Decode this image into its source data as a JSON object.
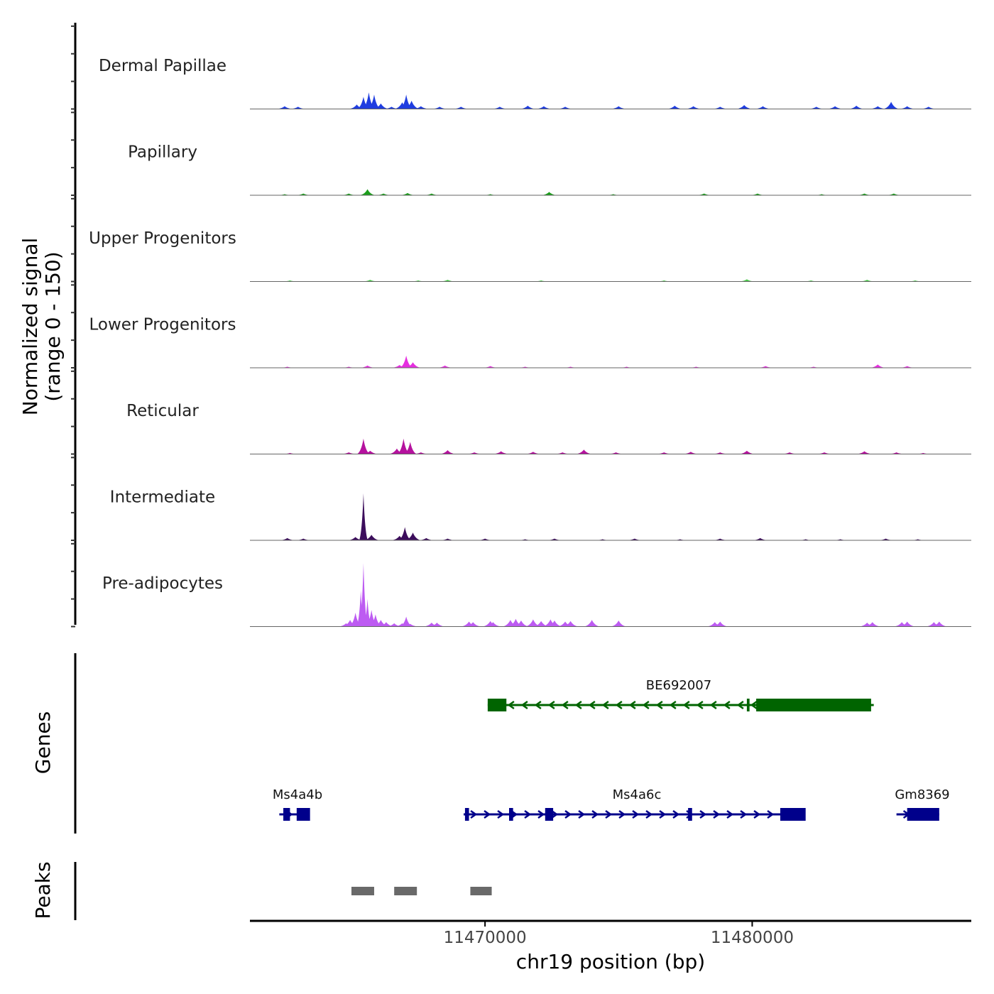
{
  "chart_data": {
    "type": "area",
    "title": "",
    "chromosome": "chr19",
    "xlabel": "chr19 position (bp)",
    "ylabel": "Normalized signal\n(range 0 - 150)",
    "xlim": [
      11461200,
      11488200
    ],
    "ylim": [
      0,
      150
    ],
    "x_ticks": [
      11470000,
      11480000
    ],
    "x_tick_labels": [
      "11470000",
      "11480000"
    ],
    "tracks": [
      {
        "name": "Dermal Papillae",
        "color": "#1f3de0",
        "peaks": [
          [
            11462500,
            5
          ],
          [
            11463000,
            4
          ],
          [
            11465200,
            8
          ],
          [
            11465450,
            22
          ],
          [
            11465650,
            30
          ],
          [
            11465850,
            26
          ],
          [
            11466100,
            10
          ],
          [
            11466500,
            4
          ],
          [
            11466900,
            12
          ],
          [
            11467050,
            26
          ],
          [
            11467250,
            15
          ],
          [
            11467600,
            5
          ],
          [
            11468300,
            4
          ],
          [
            11469100,
            4
          ],
          [
            11470550,
            4
          ],
          [
            11471600,
            6
          ],
          [
            11472200,
            5
          ],
          [
            11473000,
            4
          ],
          [
            11475000,
            5
          ],
          [
            11477100,
            6
          ],
          [
            11477800,
            5
          ],
          [
            11478800,
            4
          ],
          [
            11479700,
            7
          ],
          [
            11480400,
            5
          ],
          [
            11482400,
            4
          ],
          [
            11483100,
            5
          ],
          [
            11483900,
            6
          ],
          [
            11484700,
            5
          ],
          [
            11485200,
            13
          ],
          [
            11485800,
            5
          ],
          [
            11486600,
            4
          ]
        ]
      },
      {
        "name": "Papillary",
        "color": "#1a9e1a",
        "peaks": [
          [
            11462500,
            2
          ],
          [
            11463200,
            3
          ],
          [
            11464900,
            3
          ],
          [
            11465600,
            11
          ],
          [
            11466200,
            3
          ],
          [
            11467100,
            4
          ],
          [
            11468000,
            3
          ],
          [
            11470200,
            2
          ],
          [
            11472400,
            6
          ],
          [
            11474800,
            2
          ],
          [
            11478200,
            3
          ],
          [
            11480200,
            3
          ],
          [
            11482600,
            2
          ],
          [
            11484200,
            3
          ],
          [
            11485300,
            3
          ]
        ]
      },
      {
        "name": "Upper Progenitors",
        "color": "#4ac94a",
        "peaks": [
          [
            11462700,
            2
          ],
          [
            11465700,
            3
          ],
          [
            11467500,
            2
          ],
          [
            11468600,
            3
          ],
          [
            11472100,
            2
          ],
          [
            11476700,
            2
          ],
          [
            11479800,
            4
          ],
          [
            11482200,
            2
          ],
          [
            11484300,
            3
          ],
          [
            11486100,
            2
          ]
        ]
      },
      {
        "name": "Lower Progenitors",
        "color": "#e62ee0",
        "peaks": [
          [
            11462600,
            2
          ],
          [
            11464900,
            2
          ],
          [
            11465600,
            4
          ],
          [
            11466800,
            5
          ],
          [
            11467050,
            22
          ],
          [
            11467300,
            10
          ],
          [
            11468500,
            4
          ],
          [
            11470200,
            3
          ],
          [
            11471500,
            2
          ],
          [
            11473200,
            2
          ],
          [
            11475300,
            2
          ],
          [
            11477900,
            2
          ],
          [
            11480500,
            3
          ],
          [
            11482300,
            2
          ],
          [
            11484700,
            6
          ],
          [
            11485800,
            3
          ]
        ]
      },
      {
        "name": "Reticular",
        "color": "#b5129e",
        "peaks": [
          [
            11462700,
            2
          ],
          [
            11464900,
            3
          ],
          [
            11465450,
            28
          ],
          [
            11465700,
            6
          ],
          [
            11466700,
            10
          ],
          [
            11466950,
            28
          ],
          [
            11467200,
            22
          ],
          [
            11467600,
            3
          ],
          [
            11468600,
            7
          ],
          [
            11469600,
            3
          ],
          [
            11470600,
            5
          ],
          [
            11471800,
            4
          ],
          [
            11472900,
            3
          ],
          [
            11473700,
            8
          ],
          [
            11474900,
            3
          ],
          [
            11476700,
            3
          ],
          [
            11477700,
            4
          ],
          [
            11478800,
            3
          ],
          [
            11479800,
            6
          ],
          [
            11481400,
            3
          ],
          [
            11482700,
            3
          ],
          [
            11484200,
            5
          ],
          [
            11485400,
            3
          ],
          [
            11486400,
            2
          ]
        ]
      },
      {
        "name": "Intermediate",
        "color": "#3c0d5c",
        "peaks": [
          [
            11462600,
            4
          ],
          [
            11463200,
            3
          ],
          [
            11465150,
            6
          ],
          [
            11465450,
            85
          ],
          [
            11465750,
            10
          ],
          [
            11466800,
            8
          ],
          [
            11467000,
            24
          ],
          [
            11467300,
            14
          ],
          [
            11467800,
            4
          ],
          [
            11468600,
            3
          ],
          [
            11470000,
            3
          ],
          [
            11471500,
            2
          ],
          [
            11472600,
            3
          ],
          [
            11474400,
            2
          ],
          [
            11475600,
            3
          ],
          [
            11477300,
            2
          ],
          [
            11478800,
            3
          ],
          [
            11480300,
            4
          ],
          [
            11482000,
            2
          ],
          [
            11483300,
            2
          ],
          [
            11485000,
            3
          ],
          [
            11486200,
            2
          ]
        ]
      },
      {
        "name": "Pre-adipocytes",
        "color": "#bd5bf2",
        "peaks": [
          [
            11464800,
            6
          ],
          [
            11464950,
            12
          ],
          [
            11465150,
            25
          ],
          [
            11465350,
            65
          ],
          [
            11465450,
            115
          ],
          [
            11465600,
            50
          ],
          [
            11465750,
            30
          ],
          [
            11465900,
            22
          ],
          [
            11466100,
            12
          ],
          [
            11466300,
            8
          ],
          [
            11466600,
            6
          ],
          [
            11466900,
            6
          ],
          [
            11467050,
            18
          ],
          [
            11467200,
            5
          ],
          [
            11468000,
            7
          ],
          [
            11468200,
            7
          ],
          [
            11469400,
            9
          ],
          [
            11469550,
            8
          ],
          [
            11470200,
            10
          ],
          [
            11470300,
            8
          ],
          [
            11470950,
            12
          ],
          [
            11471150,
            14
          ],
          [
            11471350,
            11
          ],
          [
            11471800,
            13
          ],
          [
            11472100,
            10
          ],
          [
            11472450,
            13
          ],
          [
            11472600,
            11
          ],
          [
            11473000,
            9
          ],
          [
            11473200,
            10
          ],
          [
            11474000,
            12
          ],
          [
            11475000,
            11
          ],
          [
            11478600,
            8
          ],
          [
            11478800,
            9
          ],
          [
            11484300,
            7
          ],
          [
            11484500,
            8
          ],
          [
            11485600,
            8
          ],
          [
            11485800,
            9
          ],
          [
            11486800,
            8
          ],
          [
            11487000,
            9
          ]
        ]
      }
    ],
    "genes": [
      {
        "name": "BE692007",
        "strand": "-",
        "color": "#006400",
        "row": 1,
        "start": 11470100,
        "end": 11484550,
        "exons": [
          [
            11470100,
            11470800
          ],
          [
            11479800,
            11479900
          ],
          [
            11480150,
            11484450
          ]
        ]
      },
      {
        "name": "Ms4a4b",
        "strand": "+",
        "color": "#00008b",
        "row": 2,
        "start": 11462300,
        "end": 11463300,
        "exons": [
          [
            11462450,
            11462700
          ],
          [
            11462950,
            11463450
          ]
        ]
      },
      {
        "name": "Ms4a6c",
        "strand": "+",
        "color": "#00008b",
        "row": 2,
        "start": 11469200,
        "end": 11481900,
        "exons": [
          [
            11469250,
            11469400
          ],
          [
            11470900,
            11471050
          ],
          [
            11472250,
            11472550
          ],
          [
            11477600,
            11477750
          ],
          [
            11481050,
            11482000
          ]
        ]
      },
      {
        "name": "Gm8369",
        "strand": "+",
        "color": "#00008b",
        "row": 2,
        "start": 11485400,
        "end": 11487000,
        "exons": [
          [
            11485800,
            11487000
          ]
        ]
      }
    ],
    "peaks_track": {
      "name": "Peaks",
      "color": "#696969",
      "regions": [
        [
          11465000,
          11465850
        ],
        [
          11466600,
          11467450
        ],
        [
          11469450,
          11470250
        ]
      ]
    },
    "panel_labels": {
      "genes": "Genes",
      "peaks": "Peaks"
    }
  }
}
